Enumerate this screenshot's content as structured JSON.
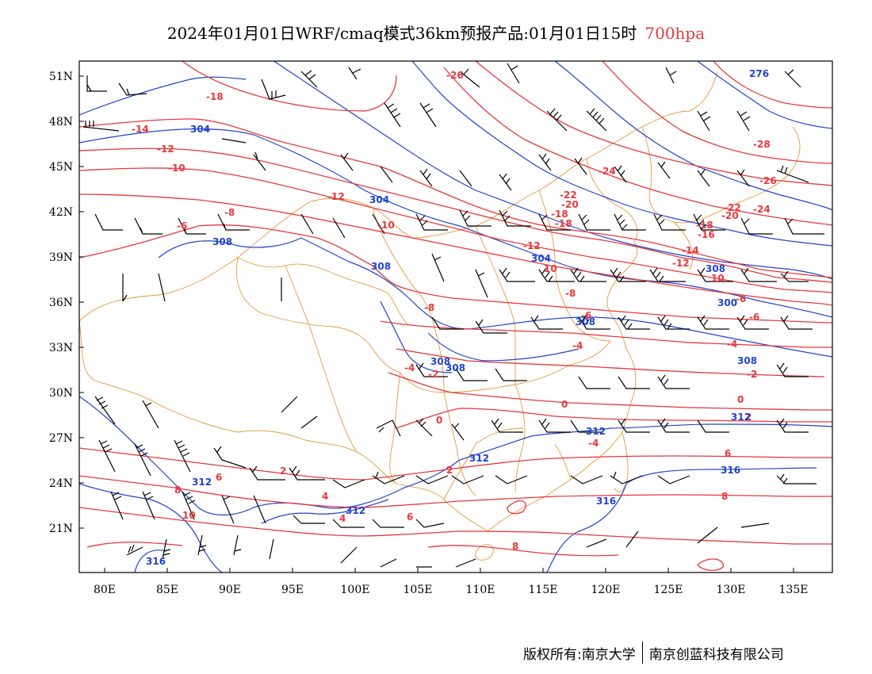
{
  "title": {
    "main": "2024年01月01日WRF/cmaq模式36km预报产品:01月01日15时",
    "level": "700hpa",
    "level_color": "#e8383a"
  },
  "footer": {
    "copyright": "版权所有:南京大学",
    "company": "南京创蓝科技有限公司"
  },
  "map": {
    "lon_range": [
      78,
      138
    ],
    "lat_range": [
      18,
      52
    ],
    "lon_ticks": [
      "80E",
      "85E",
      "90E",
      "95E",
      "100E",
      "105E",
      "110E",
      "115E",
      "120E",
      "125E",
      "130E",
      "135E"
    ],
    "lat_ticks": [
      "21N",
      "24N",
      "27N",
      "30N",
      "33N",
      "36N",
      "39N",
      "42N",
      "45N",
      "48N",
      "51N"
    ],
    "temperature_labels": [
      "-28",
      "-26",
      "-24",
      "-22",
      "-20",
      "-18",
      "-16",
      "-14",
      "-12",
      "-10",
      "-8",
      "-6",
      "-4",
      "-2",
      "0",
      "2",
      "4",
      "6",
      "8",
      "10"
    ],
    "height_labels": [
      "276",
      "300",
      "304",
      "308",
      "312",
      "316"
    ],
    "temperature_color": "#e8383a",
    "height_color": "#2244cc",
    "border_color": "#e8973a",
    "barb_color": "#000000"
  }
}
